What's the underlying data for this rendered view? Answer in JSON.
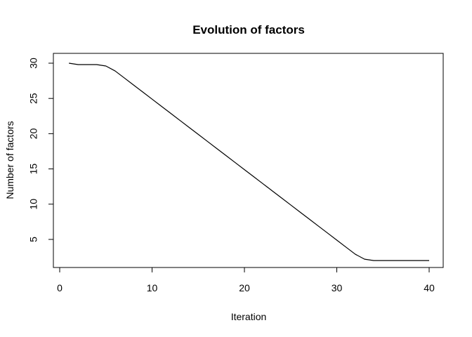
{
  "chart_data": {
    "type": "line",
    "title": "Evolution of factors",
    "xlabel": "Iteration",
    "ylabel": "Number of factors",
    "xlim": [
      0,
      40
    ],
    "ylim": [
      2,
      30
    ],
    "xticks": [
      0,
      10,
      20,
      30,
      40
    ],
    "yticks": [
      5,
      10,
      15,
      20,
      25,
      30
    ],
    "grid": false,
    "legend": "none",
    "series": [
      {
        "color": "#000000",
        "x": [
          1,
          2,
          3,
          4,
          5,
          6,
          7,
          8,
          9,
          10,
          11,
          12,
          13,
          14,
          15,
          16,
          17,
          18,
          19,
          20,
          21,
          22,
          23,
          24,
          25,
          26,
          27,
          28,
          29,
          30,
          31,
          32,
          33,
          34,
          35,
          36,
          37,
          38,
          39,
          40
        ],
        "values": [
          30,
          29.8,
          29.8,
          29.8,
          29.6,
          28.9,
          27.9,
          26.9,
          25.9,
          24.9,
          23.9,
          22.9,
          21.9,
          20.9,
          19.9,
          18.9,
          17.9,
          16.9,
          15.9,
          14.9,
          13.9,
          12.9,
          11.9,
          10.9,
          9.9,
          8.9,
          7.9,
          6.9,
          5.9,
          4.9,
          3.9,
          2.9,
          2.2,
          2,
          2,
          2,
          2,
          2,
          2,
          2
        ]
      }
    ]
  }
}
